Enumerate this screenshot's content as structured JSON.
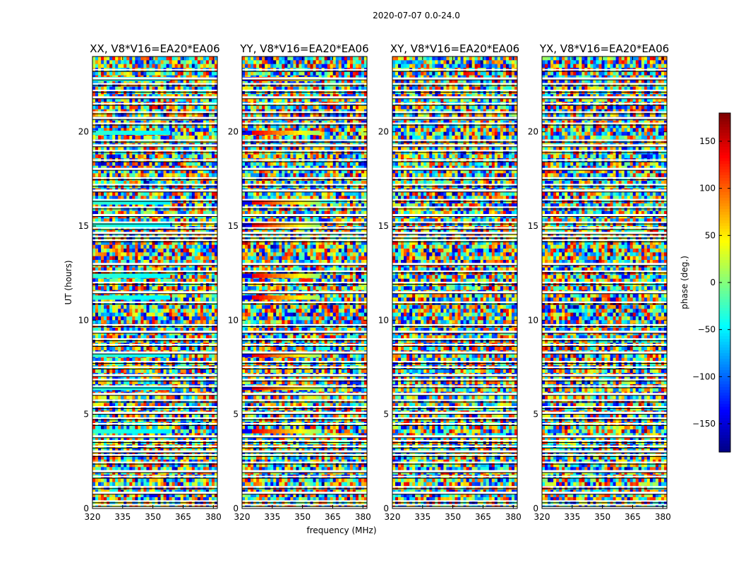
{
  "chart_data": {
    "type": "heatmap",
    "suptitle": "2020-07-07 0.0-24.0",
    "xlabel": "frequency (MHz)",
    "ylabel": "UT (hours)",
    "xlim": [
      320,
      382
    ],
    "ylim": [
      0,
      24
    ],
    "xticks": [
      "320",
      "335",
      "350",
      "365",
      "380"
    ],
    "xtick_values": [
      320,
      335,
      350,
      365,
      380
    ],
    "yticks": [
      "0",
      "5",
      "10",
      "15",
      "20"
    ],
    "ytick_values": [
      0,
      5,
      10,
      15,
      20
    ],
    "panels": [
      {
        "title": "XX, V8*V16=EA20*EA06",
        "structure": "cyan"
      },
      {
        "title": "YY, V8*V16=EA20*EA06",
        "structure": "red"
      },
      {
        "title": "XY, V8*V16=EA20*EA06",
        "structure": "noise"
      },
      {
        "title": "YX, V8*V16=EA20*EA06",
        "structure": "noise"
      }
    ],
    "colorbar": {
      "label": "phase (deg.)",
      "colormap": "jet",
      "range": [
        -180,
        180
      ],
      "ticks": [
        "150",
        "100",
        "50",
        "0",
        "−50",
        "−100",
        "−150"
      ],
      "tick_values": [
        150,
        100,
        50,
        0,
        -50,
        -100,
        -150
      ]
    },
    "flagged_gaps_ut": [
      0.05,
      0.2,
      0.4,
      0.85,
      1.15,
      1.7,
      2.0,
      2.45,
      2.85,
      3.05,
      3.3,
      3.6,
      3.85,
      4.5,
      4.8,
      5.1,
      5.4,
      5.75,
      6.1,
      6.5,
      6.85,
      7.1,
      7.5,
      7.8,
      8.3,
      8.7,
      9.0,
      9.4,
      9.75,
      10.95,
      11.5,
      12.0,
      12.6,
      13.0,
      14.25,
      14.45,
      14.65,
      14.9,
      15.2,
      15.6,
      16.0,
      16.4,
      16.9,
      17.2,
      17.55,
      18.05,
      18.5,
      19.0,
      19.3,
      19.55,
      20.45,
      20.75,
      21.05,
      21.5,
      21.85,
      22.2,
      22.55,
      22.85,
      23.3
    ],
    "coherent_bands_ut": [
      4.1,
      6.4,
      8.15,
      11.2,
      12.35,
      15.05,
      16.25,
      19.95,
      22.8
    ]
  }
}
